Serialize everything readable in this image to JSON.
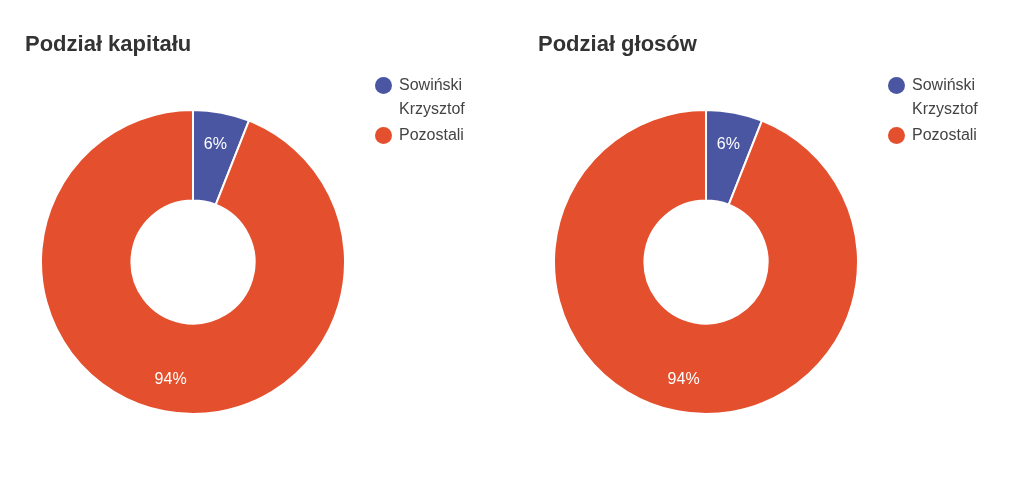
{
  "chart_data": [
    {
      "type": "donut",
      "title": "Podział kapitału",
      "categories": [
        "Sowiński Krzysztof",
        "Pozostali"
      ],
      "values": [
        6,
        94
      ],
      "colors": [
        "#4b56a2",
        "#e4502e"
      ],
      "value_labels": [
        "6%",
        "94%"
      ],
      "legend": "top right"
    },
    {
      "type": "donut",
      "title": "Podział głosów",
      "categories": [
        "Sowiński Krzysztof",
        "Pozostali"
      ],
      "values": [
        6,
        94
      ],
      "colors": [
        "#4b56a2",
        "#e4502e"
      ],
      "value_labels": [
        "6%",
        "94%"
      ],
      "legend": "top right"
    }
  ]
}
